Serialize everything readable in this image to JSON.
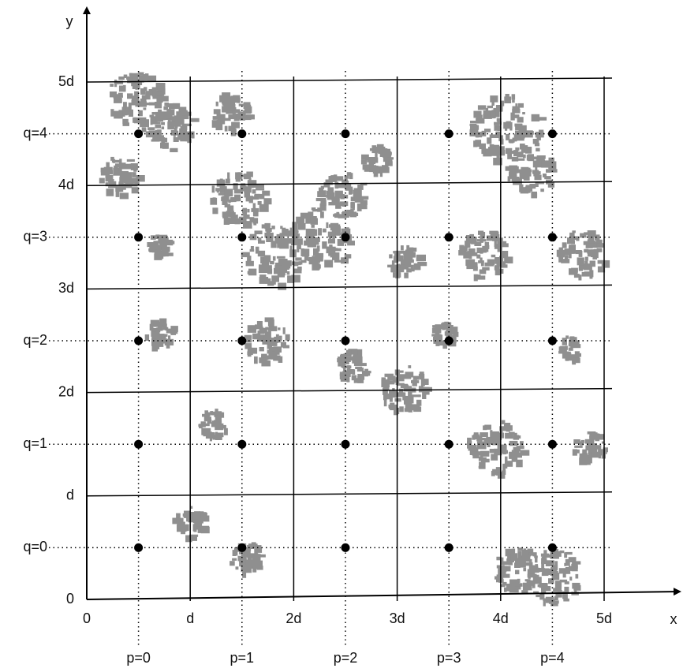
{
  "axes": {
    "x_label": "x",
    "y_label": "y"
  },
  "x_ticks": [
    "0",
    "d",
    "2d",
    "3d",
    "4d",
    "5d"
  ],
  "y_ticks": [
    "0",
    "d",
    "2d",
    "3d",
    "4d",
    "5d"
  ],
  "p_labels": [
    "p=0",
    "p=1",
    "p=2",
    "p=3",
    "p=4"
  ],
  "q_labels": [
    "q=0",
    "q=1",
    "q=2",
    "q=3",
    "q=4"
  ]
}
